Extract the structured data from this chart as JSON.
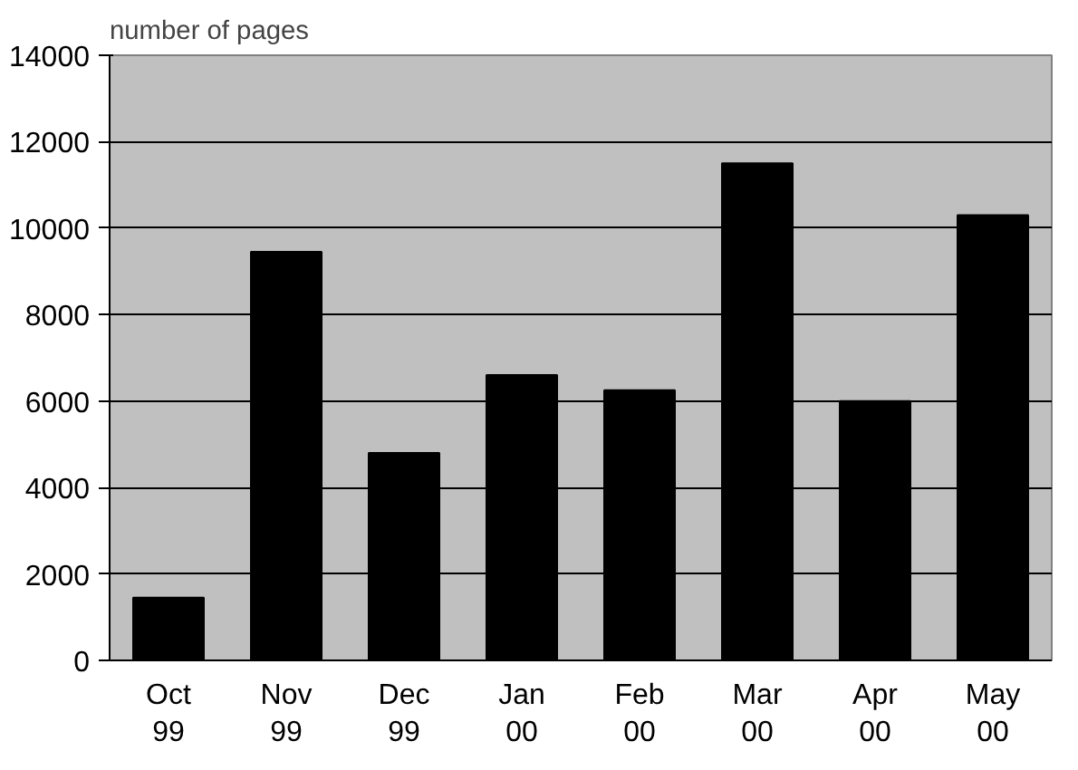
{
  "chart_data": {
    "type": "bar",
    "ylabel": "number of pages",
    "categories": [
      "Oct\n99",
      "Nov\n99",
      "Dec\n99",
      "Jan\n00",
      "Feb\n00",
      "Mar\n00",
      "Apr\n00",
      "May\n00"
    ],
    "values": [
      1450,
      9450,
      4800,
      6600,
      6250,
      11500,
      6000,
      10300
    ],
    "color": "#000000",
    "ylim": [
      0,
      14000
    ],
    "yticks": [
      0,
      2000,
      4000,
      6000,
      8000,
      10000,
      12000,
      14000
    ],
    "grid": "y"
  }
}
